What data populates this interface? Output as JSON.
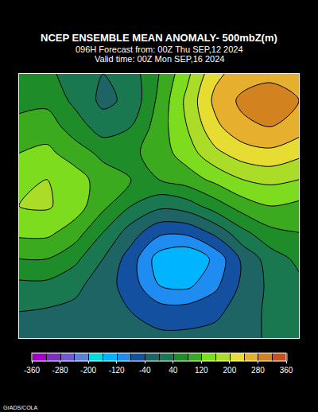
{
  "chart_data": {
    "type": "contour",
    "title": "NCEP ENSEMBLE MEAN ANOMALY- 500mbZ(m)",
    "subtitle": [
      "096H Forecast from: 00Z Thu SEP,12 2024",
      "Valid time: 00Z Mon SEP,16 2024"
    ],
    "footer": "GrADS/COLA",
    "x": [
      0,
      1,
      2,
      3,
      4,
      5,
      6,
      7,
      8,
      9,
      10
    ],
    "y": [
      10,
      9,
      8,
      7,
      6,
      5,
      4,
      3,
      2,
      1,
      0
    ],
    "xlim": [
      0,
      10
    ],
    "ylim": [
      0,
      10
    ],
    "tick_labels": false,
    "z": [
      [
        60,
        50,
        20,
        0,
        20,
        80,
        150,
        230,
        260,
        270,
        250
      ],
      [
        70,
        70,
        30,
        -10,
        10,
        90,
        170,
        250,
        290,
        300,
        280
      ],
      [
        90,
        100,
        60,
        20,
        40,
        100,
        160,
        230,
        270,
        280,
        260
      ],
      [
        120,
        130,
        100,
        70,
        70,
        100,
        140,
        190,
        220,
        230,
        210
      ],
      [
        150,
        160,
        140,
        100,
        80,
        80,
        100,
        130,
        160,
        170,
        160
      ],
      [
        160,
        165,
        140,
        90,
        40,
        10,
        20,
        60,
        100,
        120,
        110
      ],
      [
        130,
        130,
        100,
        40,
        -20,
        -70,
        -70,
        -30,
        30,
        70,
        80
      ],
      [
        80,
        80,
        50,
        0,
        -60,
        -140,
        -160,
        -110,
        -30,
        20,
        50
      ],
      [
        30,
        30,
        10,
        -20,
        -60,
        -120,
        -130,
        -90,
        -30,
        10,
        30
      ],
      [
        0,
        -5,
        -10,
        -20,
        -40,
        -60,
        -60,
        -50,
        -20,
        10,
        20
      ],
      [
        -10,
        -10,
        -15,
        -20,
        -25,
        -30,
        -30,
        -25,
        -10,
        5,
        10
      ]
    ],
    "colorbar": {
      "range": [
        -360,
        360
      ],
      "ticks": [
        -360,
        -280,
        -200,
        -120,
        -40,
        40,
        120,
        200,
        280,
        360
      ],
      "colors": [
        "#a000c8",
        "#7d2fbf",
        "#6e5ad2",
        "#5a82dc",
        "#00dcdc",
        "#00b4ff",
        "#1e8cf0",
        "#1450a0",
        "#1e6464",
        "#197850",
        "#1e8c28",
        "#3caa1e",
        "#7ddc1e",
        "#aadc28",
        "#e6dc32",
        "#e6af2d",
        "#d2821e",
        "#c8501e"
      ]
    }
  }
}
